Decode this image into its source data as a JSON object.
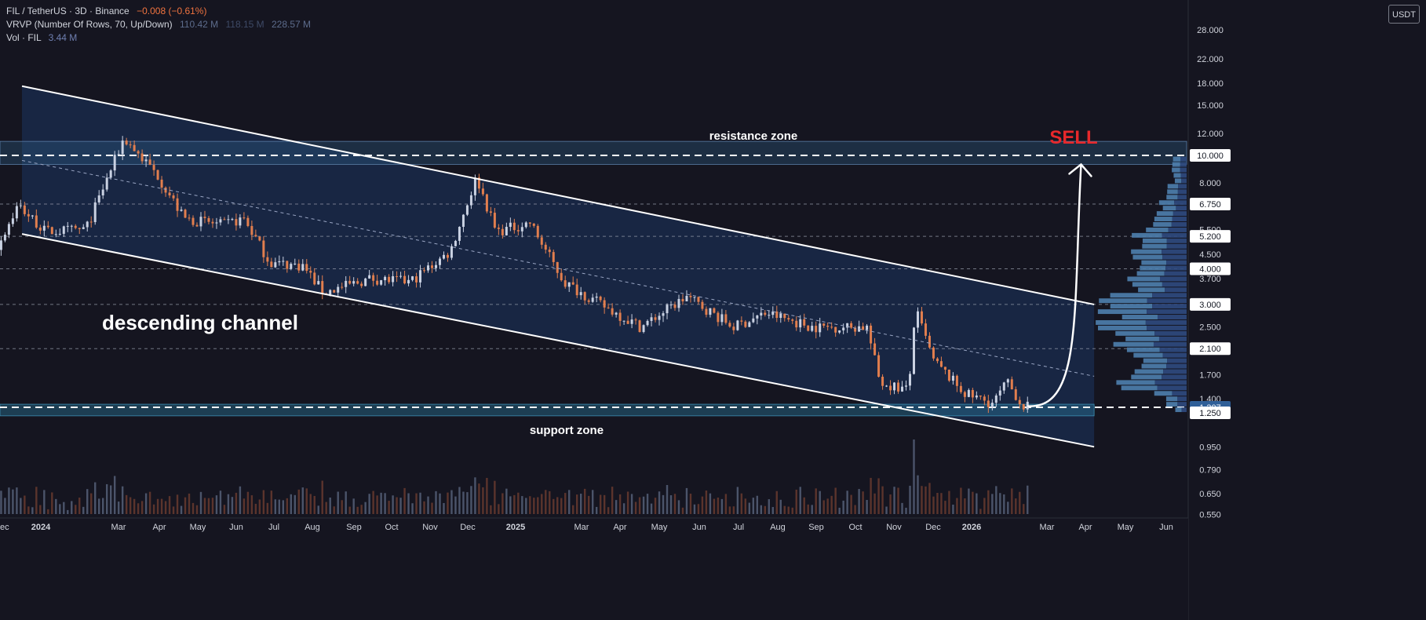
{
  "legend": {
    "symbol": "FIL / TetherUS · 3D · Binance",
    "change": "−0.008 (−0.61%)",
    "vrvp_label": "VRVP (Number Of Rows, 70, Up/Down)",
    "vrvp_up": "110.42 M",
    "vrvp_down": "118.15 M",
    "vrvp_total": "228.57 M",
    "vol_label": "Vol · FIL",
    "vol_value": "3.44 M"
  },
  "currency": "USDT",
  "colors": {
    "background": "#151520",
    "up_candle": "#c9d1e2",
    "down_candle": "#e17e4e",
    "channel_fill": "#1b3560",
    "zone_fill": "#2d5e88",
    "support_fill": "#2a7da0",
    "sell": "#e8282b",
    "axis_text": "#d1d4dc"
  },
  "chart_data": {
    "type": "candlestick",
    "title": "",
    "scale": "log",
    "ylim": [
      0.55,
      28
    ],
    "y_ticks": [
      "28.000",
      "22.000",
      "18.000",
      "15.000",
      "12.000",
      "10.000",
      "8.000",
      "6.750",
      "5.500",
      "5.200",
      "4.500",
      "4.000",
      "3.700",
      "3.000",
      "2.500",
      "2.100",
      "1.700",
      "1.400",
      "1.307",
      "1.250",
      "0.950",
      "0.790",
      "0.650",
      "0.550"
    ],
    "x_ticks": [
      "ec",
      "2024",
      "Mar",
      "Apr",
      "May",
      "Jun",
      "Jul",
      "Aug",
      "Sep",
      "Oct",
      "Nov",
      "Dec",
      "2025",
      "Mar",
      "Apr",
      "May",
      "Jun",
      "Jul",
      "Aug",
      "Sep",
      "Oct",
      "Nov",
      "Dec",
      "2026",
      "Mar",
      "Apr",
      "May",
      "Jun"
    ],
    "last_price": "1.307",
    "dashed_levels": [
      10.0,
      6.75,
      5.2,
      4.0,
      3.0,
      2.1,
      1.307
    ],
    "price_path": [
      {
        "date": "2023-12-01",
        "price": 4.5
      },
      {
        "date": "2023-12-20",
        "price": 6.7
      },
      {
        "date": "2024-01-10",
        "price": 5.4
      },
      {
        "date": "2024-02-10",
        "price": 5.5
      },
      {
        "date": "2024-03-10",
        "price": 11.5
      },
      {
        "date": "2024-04-05",
        "price": 8.5
      },
      {
        "date": "2024-04-25",
        "price": 6.0
      },
      {
        "date": "2024-05-25",
        "price": 5.7
      },
      {
        "date": "2024-06-10",
        "price": 6.0
      },
      {
        "date": "2024-06-30",
        "price": 4.2
      },
      {
        "date": "2024-07-25",
        "price": 4.1
      },
      {
        "date": "2024-08-10",
        "price": 3.3
      },
      {
        "date": "2024-09-15",
        "price": 3.7
      },
      {
        "date": "2024-10-15",
        "price": 3.6
      },
      {
        "date": "2024-11-15",
        "price": 4.6
      },
      {
        "date": "2024-12-05",
        "price": 8.4
      },
      {
        "date": "2024-12-20",
        "price": 5.4
      },
      {
        "date": "2025-01-15",
        "price": 5.8
      },
      {
        "date": "2025-02-10",
        "price": 3.6
      },
      {
        "date": "2025-03-10",
        "price": 3.0
      },
      {
        "date": "2025-04-10",
        "price": 2.5
      },
      {
        "date": "2025-05-15",
        "price": 3.2
      },
      {
        "date": "2025-06-20",
        "price": 2.5
      },
      {
        "date": "2025-07-15",
        "price": 2.8
      },
      {
        "date": "2025-08-20",
        "price": 2.5
      },
      {
        "date": "2025-09-30",
        "price": 2.5
      },
      {
        "date": "2025-10-10",
        "price": 1.6
      },
      {
        "date": "2025-11-01",
        "price": 1.5
      },
      {
        "date": "2025-11-06",
        "price": 2.9
      },
      {
        "date": "2025-11-20",
        "price": 1.9
      },
      {
        "date": "2025-12-15",
        "price": 1.45
      },
      {
        "date": "2026-01-05",
        "price": 1.35
      },
      {
        "date": "2026-01-15",
        "price": 1.6
      },
      {
        "date": "2026-01-28",
        "price": 1.32
      }
    ],
    "channel": {
      "upper": [
        {
          "date": "2023-12-20",
          "price": 17.5
        },
        {
          "date": "2026-03-20",
          "price": 3.0
        }
      ],
      "lower": [
        {
          "date": "2023-12-20",
          "price": 5.3
        },
        {
          "date": "2026-03-20",
          "price": 0.95
        }
      ],
      "mid": [
        {
          "date": "2023-12-20",
          "price": 9.6
        },
        {
          "date": "2026-03-20",
          "price": 1.68
        }
      ]
    },
    "resistance_zone": [
      9.3,
      11.2
    ],
    "support_zone": [
      1.22,
      1.34
    ],
    "projection": [
      {
        "date": "2026-01-28",
        "price": 1.32
      },
      {
        "date": "2026-03-10",
        "price": 9.3
      }
    ],
    "annotations": {
      "channel": "descending channel",
      "resistance": "resistance zone",
      "support": "support zone",
      "signal": "SELL"
    }
  }
}
